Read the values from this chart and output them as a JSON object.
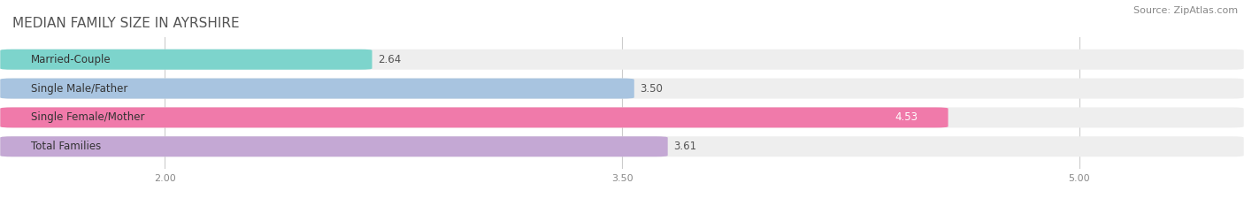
{
  "title": "MEDIAN FAMILY SIZE IN AYRSHIRE",
  "source": "Source: ZipAtlas.com",
  "categories": [
    "Married-Couple",
    "Single Male/Father",
    "Single Female/Mother",
    "Total Families"
  ],
  "values": [
    2.64,
    3.5,
    4.53,
    3.61
  ],
  "bar_colors": [
    "#7dd4cc",
    "#a8c4e0",
    "#f07aaa",
    "#c4a8d4"
  ],
  "xmin": 1.5,
  "xmax": 5.5,
  "xticks": [
    2.0,
    3.5,
    5.0
  ],
  "bar_height": 0.62,
  "background_color": "#ffffff",
  "bar_bg_color": "#eeeeee",
  "label_fontsize": 8.5,
  "title_fontsize": 11,
  "value_fontsize": 8.5,
  "source_fontsize": 8
}
